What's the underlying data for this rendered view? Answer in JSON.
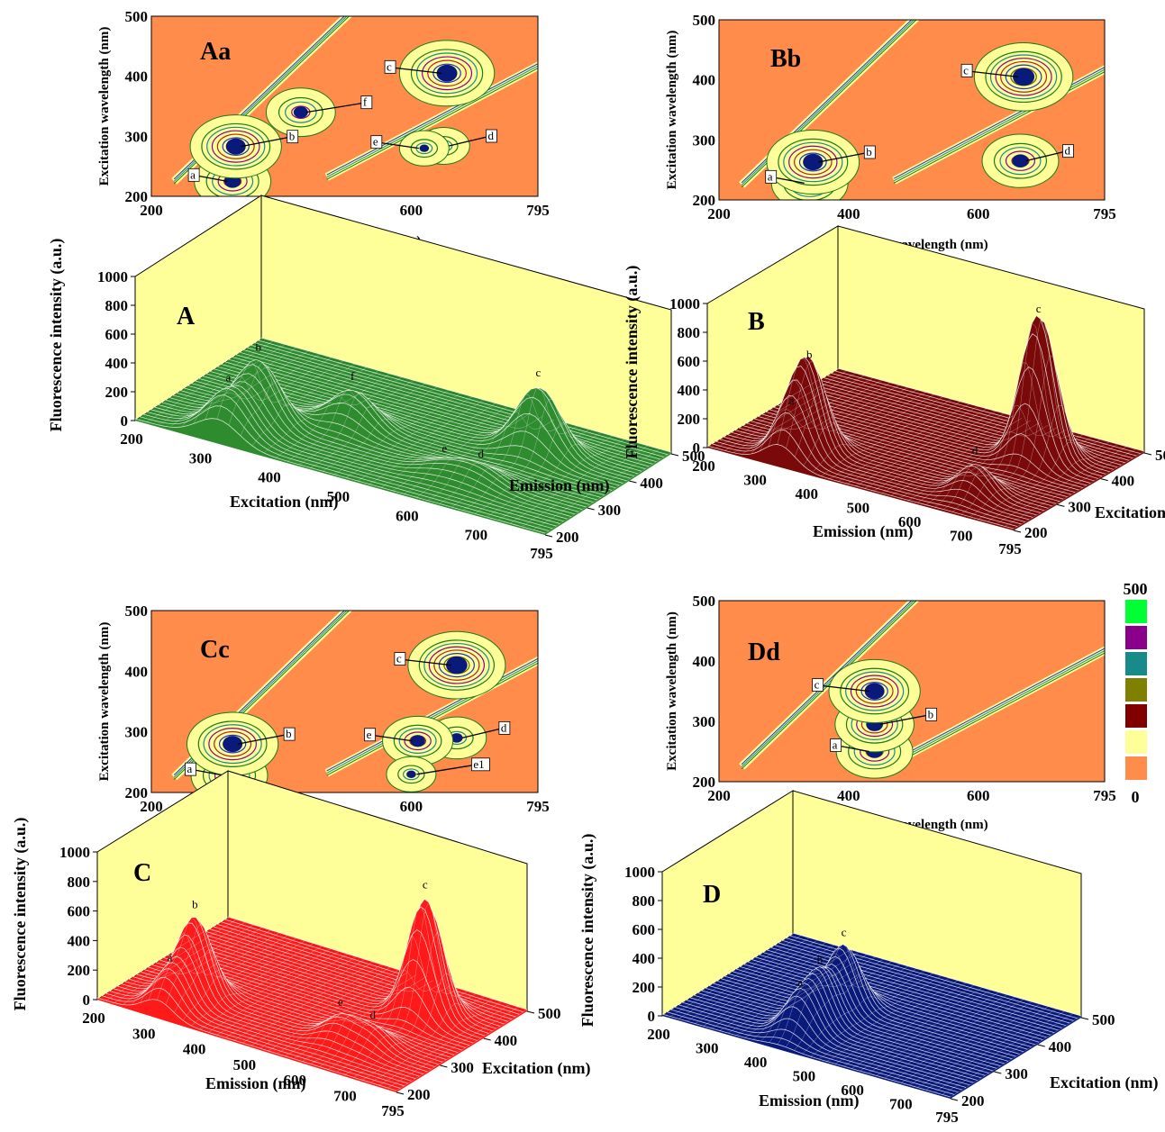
{
  "chart_data": [
    {
      "id": "Aa",
      "type": "heatmap",
      "subtype": "contour",
      "panel_label": "Aa",
      "xlabel": "Emission wavelength (nm)",
      "ylabel": "Excitation wavelength (nm)",
      "xlim": [
        200,
        795
      ],
      "ylim": [
        200,
        500
      ],
      "xticks": [
        "200",
        "400",
        "600",
        "795"
      ],
      "yticks": [
        "200",
        "300",
        "400",
        "500"
      ],
      "peaks": [
        {
          "label": "a",
          "x": 325,
          "y": 225,
          "intensity": 300
        },
        {
          "label": "b",
          "x": 330,
          "y": 283,
          "intensity": 420
        },
        {
          "label": "c",
          "x": 655,
          "y": 405,
          "intensity": 450
        },
        {
          "label": "d",
          "x": 650,
          "y": 284,
          "intensity": 100
        },
        {
          "label": "e",
          "x": 620,
          "y": 280,
          "intensity": 80
        },
        {
          "label": "f",
          "x": 430,
          "y": 340,
          "intensity": 240
        }
      ]
    },
    {
      "id": "Bb",
      "type": "heatmap",
      "subtype": "contour",
      "panel_label": "Bb",
      "xlabel": "Emission wavelength (nm)",
      "ylabel": "Excitation wavelength (nm)",
      "xlim": [
        200,
        795
      ],
      "ylim": [
        200,
        500
      ],
      "xticks": [
        "200",
        "400",
        "600",
        "795"
      ],
      "yticks": [
        "200",
        "300",
        "400",
        "500"
      ],
      "peaks": [
        {
          "label": "a",
          "x": 340,
          "y": 228,
          "intensity": 300
        },
        {
          "label": "b",
          "x": 345,
          "y": 263,
          "intensity": 430
        },
        {
          "label": "c",
          "x": 670,
          "y": 405,
          "intensity": 480
        },
        {
          "label": "d",
          "x": 665,
          "y": 265,
          "intensity": 300
        }
      ]
    },
    {
      "id": "Cc",
      "type": "heatmap",
      "subtype": "contour",
      "panel_label": "Cc",
      "xlabel": "Emission wavelength (nm)",
      "ylabel": "Excitation wavelength (nm)",
      "xlim": [
        200,
        795
      ],
      "ylim": [
        200,
        500
      ],
      "xticks": [
        "200",
        "400",
        "600",
        "795"
      ],
      "yticks": [
        "200",
        "300",
        "400",
        "500"
      ],
      "peaks": [
        {
          "label": "a",
          "x": 320,
          "y": 228,
          "intensity": 300
        },
        {
          "label": "b",
          "x": 325,
          "y": 280,
          "intensity": 420
        },
        {
          "label": "c",
          "x": 670,
          "y": 410,
          "intensity": 470
        },
        {
          "label": "d",
          "x": 670,
          "y": 290,
          "intensity": 160
        },
        {
          "label": "e",
          "x": 610,
          "y": 285,
          "intensity": 250
        },
        {
          "label": "e1",
          "x": 600,
          "y": 230,
          "intensity": 80
        }
      ]
    },
    {
      "id": "Dd",
      "type": "heatmap",
      "subtype": "contour",
      "panel_label": "Dd",
      "xlabel": "Emission wavelength (nm)",
      "ylabel": "Excitation wavelength (nm)",
      "xlim": [
        200,
        795
      ],
      "ylim": [
        200,
        500
      ],
      "xticks": [
        "200",
        "400",
        "600",
        "795"
      ],
      "yticks": [
        "200",
        "300",
        "400",
        "500"
      ],
      "peaks": [
        {
          "label": "a",
          "x": 440,
          "y": 250,
          "intensity": 300
        },
        {
          "label": "b",
          "x": 440,
          "y": 295,
          "intensity": 320
        },
        {
          "label": "c",
          "x": 440,
          "y": 350,
          "intensity": 420
        }
      ],
      "colorscale": {
        "max_label": "500",
        "min_label": "0",
        "colors": [
          "#00ff33",
          "#8b008b",
          "#178a8a",
          "#7f7f00",
          "#800000",
          "#ffff99",
          "#ff8c4a"
        ]
      }
    },
    {
      "id": "A",
      "type": "surface",
      "panel_label": "A",
      "zlabel": "Fluorescence intensity (a.u.)",
      "xlabel": "Excitation (nm)",
      "ylabel": "Emission (nm)",
      "zlim": [
        0,
        1000
      ],
      "zticks": [
        "0",
        "200",
        "400",
        "600",
        "800",
        "1000"
      ],
      "xticks": [
        "200",
        "300",
        "400",
        "500",
        "600",
        "700",
        "795"
      ],
      "yticks": [
        "200",
        "300",
        "400",
        "500"
      ],
      "surface_color": "#2e8b2e",
      "peaks": [
        {
          "label": "a",
          "emission": 320,
          "excitation": 225,
          "intensity": 300
        },
        {
          "label": "b",
          "emission": 330,
          "excitation": 280,
          "intensity": 420
        },
        {
          "label": "c",
          "emission": 660,
          "excitation": 405,
          "intensity": 450
        },
        {
          "label": "d",
          "emission": 650,
          "excitation": 285,
          "intensity": 100
        },
        {
          "label": "e",
          "emission": 600,
          "excitation": 280,
          "intensity": 80
        },
        {
          "label": "f",
          "emission": 430,
          "excitation": 340,
          "intensity": 240
        }
      ]
    },
    {
      "id": "B",
      "type": "surface",
      "panel_label": "B",
      "zlabel": "Fluorescence intensity (a.u.)",
      "xlabel": "Emission (nm)",
      "ylabel": "Excitation (nm)",
      "zlim": [
        0,
        1000
      ],
      "zticks": [
        "0",
        "200",
        "400",
        "600",
        "800",
        "1000"
      ],
      "xticks": [
        "200",
        "300",
        "400",
        "500",
        "600",
        "700",
        "795"
      ],
      "yticks": [
        "200",
        "300",
        "400",
        "500"
      ],
      "surface_color": "#7a0a0a",
      "peaks": [
        {
          "label": "a",
          "emission": 340,
          "excitation": 228,
          "intensity": 300
        },
        {
          "label": "b",
          "emission": 345,
          "excitation": 263,
          "intensity": 560
        },
        {
          "label": "c",
          "emission": 670,
          "excitation": 405,
          "intensity": 1000
        },
        {
          "label": "d",
          "emission": 665,
          "excitation": 265,
          "intensity": 200
        }
      ]
    },
    {
      "id": "C",
      "type": "surface",
      "panel_label": "C",
      "zlabel": "Fluorescence intensity (a.u.)",
      "xlabel": "Emission (nm)",
      "ylabel": "Excitation (nm)",
      "zlim": [
        0,
        1000
      ],
      "zticks": [
        "0",
        "200",
        "400",
        "600",
        "800",
        "1000"
      ],
      "xticks": [
        "200",
        "300",
        "400",
        "500",
        "600",
        "700",
        "795"
      ],
      "yticks": [
        "200",
        "300",
        "400",
        "500"
      ],
      "surface_color": "#ff1a1a",
      "peaks": [
        {
          "label": "a",
          "emission": 320,
          "excitation": 228,
          "intensity": 250
        },
        {
          "label": "b",
          "emission": 325,
          "excitation": 280,
          "intensity": 520
        },
        {
          "label": "c",
          "emission": 670,
          "excitation": 410,
          "intensity": 780
        },
        {
          "label": "d",
          "emission": 670,
          "excitation": 290,
          "intensity": 120
        },
        {
          "label": "e",
          "emission": 610,
          "excitation": 285,
          "intensity": 150
        }
      ]
    },
    {
      "id": "D",
      "type": "surface",
      "panel_label": "D",
      "zlabel": "Fluorescence intensity (a.u.)",
      "xlabel": "Emission (nm)",
      "ylabel": "Excitation (nm)",
      "zlim": [
        0,
        1000
      ],
      "zticks": [
        "0",
        "200",
        "400",
        "600",
        "800",
        "1000"
      ],
      "xticks": [
        "200",
        "300",
        "400",
        "500",
        "600",
        "700",
        "795"
      ],
      "yticks": [
        "200",
        "300",
        "400",
        "500"
      ],
      "surface_color": "#0a1a7a",
      "peaks": [
        {
          "label": "a",
          "emission": 440,
          "excitation": 250,
          "intensity": 260
        },
        {
          "label": "b",
          "emission": 440,
          "excitation": 295,
          "intensity": 330
        },
        {
          "label": "c",
          "emission": 440,
          "excitation": 350,
          "intensity": 420
        }
      ]
    }
  ],
  "colors": {
    "contour_background": "#ff8c4a",
    "low_region": "#ffff99",
    "back_wall": "#ffff99",
    "peak_core": "#0a1a7a"
  }
}
